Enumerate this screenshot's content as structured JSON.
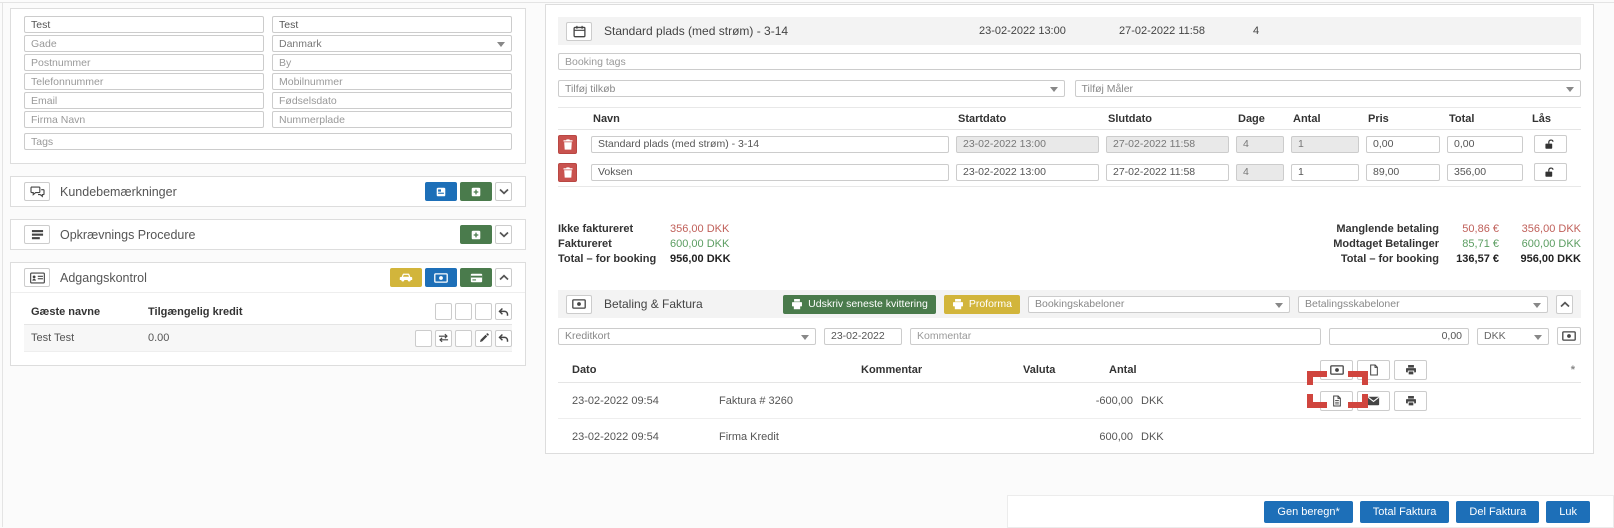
{
  "form": {
    "first_name": "Test",
    "last_name": "Test",
    "street_ph": "Gade",
    "country": "Danmark",
    "zip_ph": "Postnummer",
    "city_ph": "By",
    "phone_ph": "Telefonnummer",
    "mobile_ph": "Mobilnummer",
    "email_ph": "Email",
    "birthdate_ph": "Fødselsdato",
    "company_ph": "Firma Navn",
    "plate_ph": "Nummerplade",
    "tags_ph": "Tags"
  },
  "sections": {
    "comments_title": "Kundebemærkninger",
    "billing_title": "Opkrævnings Procedure",
    "access_title": "Adgangskontrol"
  },
  "access": {
    "col_name": "Gæste navne",
    "col_credit": "Tilgængelig kredit",
    "rows": [
      {
        "name": "Test Test",
        "credit": "0.00"
      }
    ]
  },
  "booking": {
    "title": "Standard plads (med strøm) - 3-14",
    "start": "23-02-2022 13:00",
    "end": "27-02-2022 11:58",
    "days": "4",
    "tags_ph": "Booking tags",
    "addon_ph": "Tilføj tilkøb",
    "meter_ph": "Tilføj Måler",
    "headers": [
      "Navn",
      "Startdato",
      "Slutdato",
      "Dage",
      "Antal",
      "Pris",
      "Total",
      "Lås"
    ],
    "rows": [
      {
        "name": "Standard plads (med strøm) - 3-14",
        "start": "23-02-2022 13:00",
        "end": "27-02-2022 11:58",
        "days": "4",
        "qty": "1",
        "price": "0,00",
        "total": "0,00"
      },
      {
        "name": "Voksen",
        "start": "23-02-2022 13:00",
        "end": "27-02-2022 11:58",
        "days": "4",
        "qty": "1",
        "price": "89,00",
        "total": "356,00"
      }
    ]
  },
  "totals": {
    "left": [
      {
        "label": "Ikke faktureret",
        "value": "356,00 DKK"
      },
      {
        "label": "Faktureret",
        "value": "600,00 DKK"
      },
      {
        "label": "Total – for booking",
        "value": "956,00 DKK"
      }
    ],
    "right": [
      {
        "label": "Manglende betaling",
        "eur": "50,86 €",
        "dkk": "356,00 DKK"
      },
      {
        "label": "Modtaget Betalinger",
        "eur": "85,71 €",
        "dkk": "600,00 DKK"
      },
      {
        "label": "Total – for booking",
        "eur": "136,57 €",
        "dkk": "956,00 DKK"
      }
    ]
  },
  "payment": {
    "title": "Betaling & Faktura",
    "print_receipt_label": "Udskriv seneste kvittering",
    "proforma_label": "Proforma",
    "booking_templates_ph": "Bookingskabeloner",
    "payment_templates_ph": "Betalingsskabeloner",
    "method": "Kreditkort",
    "date": "23-02-2022",
    "comment_ph": "Kommentar",
    "amount": "0,00",
    "currency": "DKK",
    "headers": [
      "Dato",
      "Kommentar",
      "Valuta",
      "Antal"
    ],
    "star": "*",
    "rows": [
      {
        "date": "23-02-2022 09:54",
        "comment": "Faktura # 3260",
        "amount": "-600,00",
        "currency": "DKK"
      },
      {
        "date": "23-02-2022 09:54",
        "comment": "Firma Kredit",
        "amount": "600,00",
        "currency": "DKK"
      }
    ]
  },
  "footer": {
    "recalc": "Gen beregn*",
    "total_invoice": "Total Faktura",
    "partial_invoice": "Del Faktura",
    "close": "Luk"
  },
  "colors": {
    "accent_blue": "#1d6fb8",
    "green": "#4a7b4c",
    "yellow": "#d2b53b",
    "danger_red": "#c9534f",
    "negative_text": "#c0605a",
    "positive_text": "#5b9d61",
    "annotation_red": "#d0453e"
  },
  "icons": [
    "calendar-icon",
    "comments-icon",
    "billing-list-icon",
    "id-card-icon",
    "window-icon",
    "plus-icon",
    "car-icon",
    "money-icon",
    "credit-card-icon",
    "chevron-down-icon",
    "chevron-up-icon",
    "caret-down-icon",
    "trash-icon",
    "unlock-icon",
    "printer-icon",
    "file-icon",
    "file-lines-icon",
    "envelope-icon",
    "exchange-icon",
    "pencil-icon",
    "undo-icon"
  ]
}
